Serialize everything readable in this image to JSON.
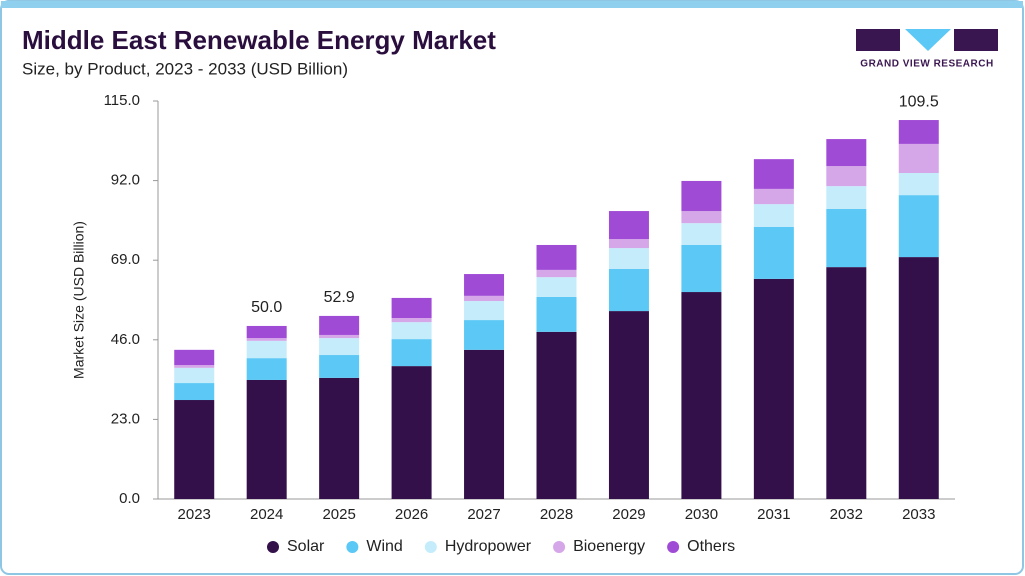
{
  "chart_data": {
    "type": "stacked-bar",
    "title": "Middle East Renewable Energy Market",
    "subtitle": "Size, by Product, 2023 - 2033 (USD Billion)",
    "brand": "GRAND VIEW RESEARCH",
    "y_label": "Market Size (USD Billion)",
    "categories": [
      "2023",
      "2024",
      "2025",
      "2026",
      "2027",
      "2028",
      "2029",
      "2030",
      "2031",
      "2032",
      "2033"
    ],
    "series": [
      {
        "name": "Solar",
        "color": "#33104a",
        "values": [
          28.6,
          34.4,
          35.0,
          38.4,
          43.1,
          48.3,
          54.3,
          59.8,
          63.6,
          67.0,
          69.9
        ]
      },
      {
        "name": "Wind",
        "color": "#5bc8f5",
        "values": [
          4.9,
          6.3,
          6.6,
          7.8,
          8.6,
          10.1,
          12.2,
          13.6,
          15.0,
          16.8,
          17.9
        ]
      },
      {
        "name": "Hydropower",
        "color": "#c5ecfb",
        "values": [
          4.4,
          5.0,
          4.9,
          4.9,
          5.5,
          5.7,
          6.0,
          6.3,
          6.6,
          6.6,
          6.4
        ]
      },
      {
        "name": "Bioenergy",
        "color": "#d5a6e8",
        "values": [
          0.8,
          0.8,
          0.9,
          1.2,
          1.5,
          2.1,
          2.6,
          3.5,
          4.4,
          5.8,
          8.4
        ]
      },
      {
        "name": "Others",
        "color": "#a04bd6",
        "values": [
          4.4,
          3.5,
          5.5,
          5.8,
          6.3,
          7.2,
          8.1,
          8.7,
          8.6,
          7.8,
          6.9
        ]
      }
    ],
    "annotations": [
      {
        "x": "2024",
        "value": 50.0,
        "label": "50.0"
      },
      {
        "x": "2025",
        "value": 52.9,
        "label": "52.9"
      },
      {
        "x": "2033",
        "value": 109.5,
        "label": "109.5"
      }
    ],
    "ylim": [
      0,
      115
    ],
    "yticks": [
      {
        "value": 0,
        "label": "0.0"
      },
      {
        "value": 23,
        "label": "23.0"
      },
      {
        "value": 46,
        "label": "46.0"
      },
      {
        "value": 69,
        "label": "69.0"
      },
      {
        "value": 92,
        "label": "92.0"
      },
      {
        "value": 115,
        "label": "115.0"
      }
    ],
    "grid": false,
    "legend": "bottom"
  }
}
